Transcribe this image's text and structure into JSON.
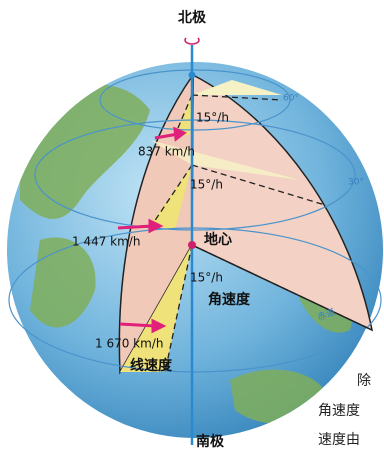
{
  "labels": {
    "north_pole": "北极",
    "south_pole": "南极",
    "earth_center": "地心",
    "angular_speeds": [
      "15°/h",
      "15°/h",
      "15°/h"
    ],
    "linear_speeds": [
      "837 km/h",
      "1 447 km/h",
      "1 670 km/h"
    ],
    "angular_velocity": "角速度",
    "linear_velocity": "线速度",
    "equator": "赤道",
    "latitude_marks": [
      "60°",
      "30°"
    ]
  },
  "side_text": [
    "除",
    "角速度",
    "速度由"
  ]
}
